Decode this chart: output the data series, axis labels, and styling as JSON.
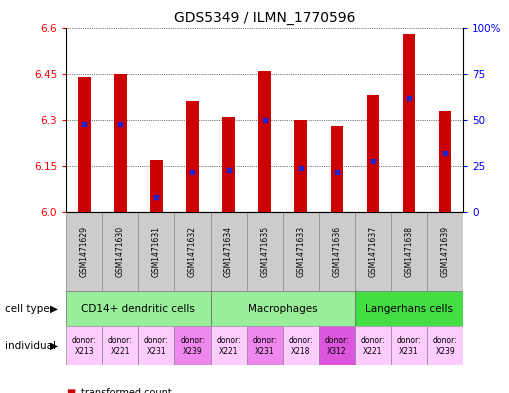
{
  "title": "GDS5349 / ILMN_1770596",
  "samples": [
    "GSM1471629",
    "GSM1471630",
    "GSM1471631",
    "GSM1471632",
    "GSM1471634",
    "GSM1471635",
    "GSM1471633",
    "GSM1471636",
    "GSM1471637",
    "GSM1471638",
    "GSM1471639"
  ],
  "transformed_counts": [
    6.44,
    6.45,
    6.17,
    6.36,
    6.31,
    6.46,
    6.3,
    6.28,
    6.38,
    6.58,
    6.33
  ],
  "percentile_ranks": [
    48,
    48,
    8,
    22,
    23,
    50,
    24,
    22,
    28,
    62,
    32
  ],
  "ylim": [
    6.0,
    6.6
  ],
  "yticks": [
    6.0,
    6.15,
    6.3,
    6.45,
    6.6
  ],
  "right_yticks": [
    0,
    25,
    50,
    75,
    100
  ],
  "right_ytick_labels": [
    "0",
    "25",
    "50",
    "75",
    "100%"
  ],
  "cell_type_groups": [
    {
      "label": "CD14+ dendritic cells",
      "start": 0,
      "end": 4,
      "color": "#99ee99"
    },
    {
      "label": "Macrophages",
      "start": 4,
      "end": 8,
      "color": "#99ee99"
    },
    {
      "label": "Langerhans cells",
      "start": 8,
      "end": 11,
      "color": "#44dd44"
    }
  ],
  "ind_labels": [
    "donor:\nX213",
    "donor:\nX221",
    "donor:\nX231",
    "donor:\nX239",
    "donor:\nX221",
    "donor:\nX231",
    "donor:\nX218",
    "donor:\nX312",
    "donor:\nX221",
    "donor:\nX231",
    "donor:\nX239"
  ],
  "ind_colors": [
    "#ffccff",
    "#ffccff",
    "#ffccff",
    "#ee88ee",
    "#ffccff",
    "#ee88ee",
    "#ffccff",
    "#dd55dd",
    "#ffccff",
    "#ffccff",
    "#ffccff"
  ],
  "bar_color": "#cc0000",
  "dot_color": "#2222cc",
  "bar_width": 0.35,
  "sample_area_color": "#cccccc",
  "title_fontsize": 10,
  "tick_fontsize": 7.5,
  "sample_fontsize": 5.5,
  "cell_fontsize": 7.5,
  "ind_fontsize": 5.5,
  "legend_fontsize": 7,
  "label_fontsize": 7.5
}
